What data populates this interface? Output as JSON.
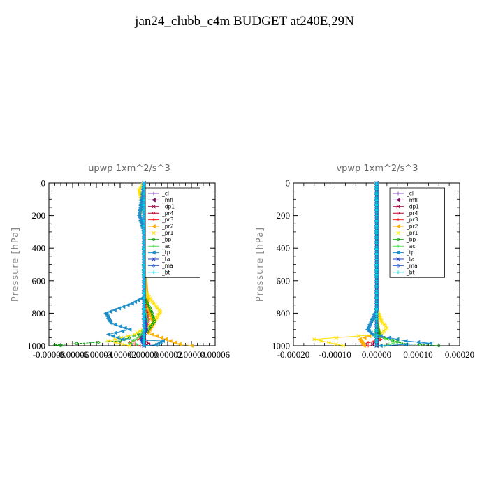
{
  "title": "jan24_clubb_c4m  BUDGET at240E,29N",
  "chart_data": [
    {
      "type": "line",
      "title": "upwp   1xm^2/s^3",
      "ylabel": "Pressure [hPa]",
      "ylim": [
        1000,
        0
      ],
      "yticks": [
        "0",
        "200",
        "400",
        "600",
        "800",
        "1000"
      ],
      "xlim": [
        -8e-05,
        6e-05
      ],
      "xtick_labels": [
        "-0.00008",
        "-0.00006",
        "-0.00004",
        "-0.00002",
        "0.00000",
        "0.00002",
        "0.00004",
        "0.00006"
      ],
      "legend_position": "top-right",
      "series": [
        {
          "name": "_cl",
          "color": "#8a4fc4",
          "points": [
            [
              0,
              0
            ],
            [
              0,
              500
            ],
            [
              0,
              900
            ],
            [
              0,
              1000
            ]
          ]
        },
        {
          "name": "_mfl",
          "color": "#7a0a5a",
          "points": [
            [
              0,
              0
            ],
            [
              0,
              1000
            ]
          ]
        },
        {
          "name": "_dp1",
          "color": "#a0003a",
          "points": [
            [
              0,
              0
            ],
            [
              0,
              500
            ],
            [
              3e-06,
              760
            ],
            [
              2e-06,
              880
            ],
            [
              -3e-06,
              950
            ],
            [
              4e-06,
              985
            ],
            [
              0,
              1000
            ]
          ]
        },
        {
          "name": "_pr4",
          "color": "#c0002a",
          "points": [
            [
              0,
              0
            ],
            [
              0,
              1000
            ]
          ]
        },
        {
          "name": "_pr3",
          "color": "#ff2020",
          "points": [
            [
              0,
              0
            ],
            [
              0,
              700
            ],
            [
              2e-06,
              780
            ],
            [
              4e-06,
              840
            ],
            [
              2e-06,
              900
            ],
            [
              -2e-06,
              950
            ],
            [
              -1.2e-05,
              980
            ],
            [
              -3e-06,
              1000
            ]
          ]
        },
        {
          "name": "_pr2",
          "color": "#ffb000",
          "points": [
            [
              0,
              0
            ],
            [
              0,
              500
            ],
            [
              3e-06,
              760
            ],
            [
              8e-06,
              860
            ],
            [
              3e-06,
              920
            ],
            [
              3e-05,
              990
            ],
            [
              4e-05,
              1000
            ]
          ]
        },
        {
          "name": "_pr1",
          "color": "#ffe000",
          "points": [
            [
              0,
              0
            ],
            [
              -4e-06,
              40
            ],
            [
              -2e-06,
              110
            ],
            [
              0,
              200
            ],
            [
              0,
              650
            ],
            [
              6e-06,
              720
            ],
            [
              1.4e-05,
              790
            ],
            [
              8e-06,
              860
            ],
            [
              -8e-06,
              930
            ],
            [
              -3e-05,
              970
            ],
            [
              -1.2e-05,
              1000
            ]
          ]
        },
        {
          "name": "_bp",
          "color": "#00a000",
          "points": [
            [
              0,
              0
            ],
            [
              0,
              700
            ],
            [
              6e-06,
              780
            ],
            [
              9e-06,
              850
            ],
            [
              3e-06,
              910
            ],
            [
              -2e-05,
              970
            ],
            [
              -7.5e-05,
              995
            ],
            [
              -7e-05,
              1000
            ]
          ]
        },
        {
          "name": "_ac",
          "color": "#50e050",
          "points": [
            [
              0,
              0
            ],
            [
              0,
              750
            ],
            [
              3e-06,
              850
            ],
            [
              -3e-06,
              940
            ],
            [
              -1.2e-05,
              985
            ],
            [
              0,
              1000
            ]
          ]
        },
        {
          "name": "_tp",
          "color": "#1f8fc8",
          "points": [
            [
              0,
              0
            ],
            [
              -4e-06,
              200
            ],
            [
              0,
              300
            ],
            [
              0,
              700
            ],
            [
              -1e-05,
              740
            ],
            [
              -3.2e-05,
              800
            ],
            [
              -2.8e-05,
              860
            ],
            [
              -1.2e-05,
              900
            ],
            [
              -3e-05,
              930
            ],
            [
              -1.8e-05,
              960
            ],
            [
              1.6e-05,
              970
            ],
            [
              1e-05,
              995
            ],
            [
              0,
              1000
            ]
          ]
        },
        {
          "name": "_ta",
          "color": "#2040c0",
          "points": [
            [
              0,
              0
            ],
            [
              0,
              800
            ],
            [
              2e-06,
              900
            ],
            [
              -2e-06,
              960
            ],
            [
              0,
              1000
            ]
          ]
        },
        {
          "name": "_ma",
          "color": "#3060d0",
          "points": [
            [
              0,
              0
            ],
            [
              0,
              1000
            ]
          ]
        },
        {
          "name": "_bt",
          "color": "#00e0e0",
          "points": [
            [
              0,
              0
            ],
            [
              0,
              1000
            ]
          ]
        }
      ]
    },
    {
      "type": "line",
      "title": "vpwp   1xm^2/s^3",
      "ylabel": "Pressure [hPa]",
      "ylim": [
        1000,
        0
      ],
      "yticks": [
        "0",
        "200",
        "400",
        "600",
        "800",
        "1000"
      ],
      "xlim": [
        -0.0002,
        0.0002
      ],
      "xtick_labels": [
        "-0.00020",
        "-0.00010",
        "0.00000",
        "0.00010",
        "0.00020"
      ],
      "legend_position": "top-right",
      "series": [
        {
          "name": "_cl",
          "color": "#8a4fc4",
          "points": [
            [
              0,
              0
            ],
            [
              0,
              1000
            ]
          ]
        },
        {
          "name": "_mfl",
          "color": "#7a0a5a",
          "points": [
            [
              0,
              0
            ],
            [
              0,
              1000
            ]
          ]
        },
        {
          "name": "_dp1",
          "color": "#a0003a",
          "points": [
            [
              0,
              0
            ],
            [
              0,
              900
            ],
            [
              5e-06,
              960
            ],
            [
              -1e-05,
              990
            ],
            [
              0,
              1000
            ]
          ]
        },
        {
          "name": "_pr4",
          "color": "#c0002a",
          "points": [
            [
              0,
              0
            ],
            [
              0,
              1000
            ]
          ]
        },
        {
          "name": "_pr3",
          "color": "#ff2020",
          "points": [
            [
              0,
              0
            ],
            [
              0,
              900
            ],
            [
              1e-05,
              960
            ],
            [
              -3.5e-05,
              990
            ],
            [
              -2e-05,
              1000
            ]
          ]
        },
        {
          "name": "_pr2",
          "color": "#ffb000",
          "points": [
            [
              0,
              0
            ],
            [
              0,
              850
            ],
            [
              5e-06,
              920
            ],
            [
              -4e-05,
              960
            ],
            [
              -3e-05,
              1000
            ]
          ]
        },
        {
          "name": "_pr1",
          "color": "#ffe000",
          "points": [
            [
              0,
              0
            ],
            [
              0,
              770
            ],
            [
              1.2e-05,
              850
            ],
            [
              2.5e-05,
              890
            ],
            [
              1e-05,
              930
            ],
            [
              -0.00015,
              960
            ],
            [
              -8e-05,
              1000
            ]
          ]
        },
        {
          "name": "_bp",
          "color": "#00a000",
          "points": [
            [
              0,
              0
            ],
            [
              0,
              850
            ],
            [
              8e-06,
              940
            ],
            [
              6e-05,
              985
            ],
            [
              0.00015,
              1000
            ]
          ]
        },
        {
          "name": "_ac",
          "color": "#50e050",
          "points": [
            [
              0,
              0
            ],
            [
              0,
              880
            ],
            [
              -6e-06,
              940
            ],
            [
              5e-05,
              975
            ],
            [
              2e-05,
              1000
            ]
          ]
        },
        {
          "name": "_tp",
          "color": "#1f8fc8",
          "points": [
            [
              0,
              0
            ],
            [
              0,
              780
            ],
            [
              -1.5e-05,
              860
            ],
            [
              -2.2e-05,
              900
            ],
            [
              -1e-05,
              930
            ],
            [
              7e-05,
              970
            ],
            [
              0.00013,
              985
            ],
            [
              1e-05,
              1000
            ]
          ]
        },
        {
          "name": "_ta",
          "color": "#2040c0",
          "points": [
            [
              0,
              0
            ],
            [
              0,
              1000
            ]
          ]
        },
        {
          "name": "_ma",
          "color": "#3060d0",
          "points": [
            [
              0,
              0
            ],
            [
              0,
              1000
            ]
          ]
        },
        {
          "name": "_bt",
          "color": "#00e0e0",
          "points": [
            [
              0,
              0
            ],
            [
              0,
              1000
            ]
          ]
        }
      ]
    }
  ]
}
